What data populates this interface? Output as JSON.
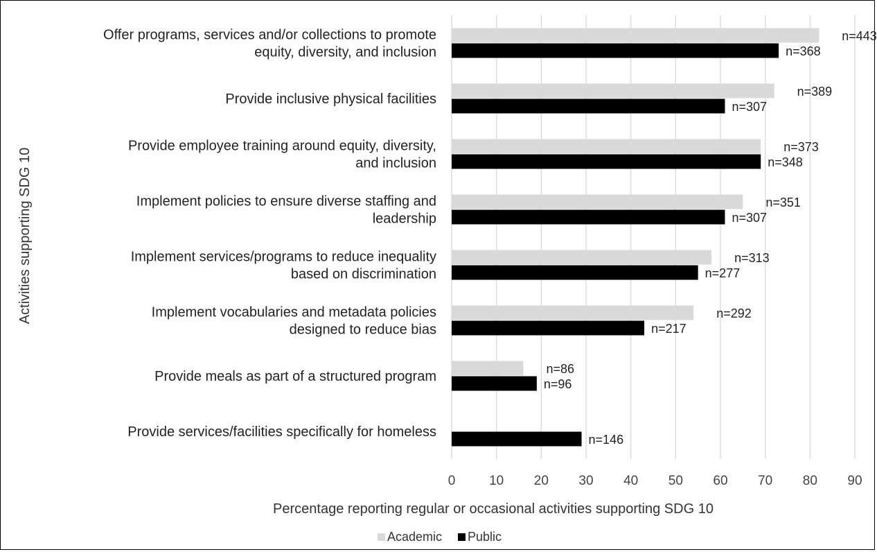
{
  "chart_data": {
    "type": "bar",
    "orientation": "horizontal",
    "categories": [
      [
        "Offer programs, services and/or collections to promote",
        "equity, diversity, and inclusion"
      ],
      [
        "Provide inclusive physical facilities"
      ],
      [
        "Provide employee training around equity, diversity,",
        "and inclusion"
      ],
      [
        "Implement policies to ensure diverse staffing and",
        "leadership"
      ],
      [
        "Implement services/programs to reduce inequality",
        "based on discrimination"
      ],
      [
        "Implement vocabularies and metadata policies",
        "designed to reduce bias"
      ],
      [
        "Provide meals as part of a structured program"
      ],
      [
        "Provide services/facilities specifically for homeless"
      ]
    ],
    "series": [
      {
        "name": "Academic",
        "color": "#d9d9d9",
        "values": [
          82,
          72,
          69,
          65,
          58,
          54,
          16,
          null
        ],
        "labels": [
          "n=443",
          "n=389",
          "n=373",
          "n=351",
          "n=313",
          "n=292",
          "n=86",
          ""
        ]
      },
      {
        "name": "Public",
        "color": "#000000",
        "values": [
          73,
          61,
          69,
          61,
          55,
          43,
          19,
          29
        ],
        "labels": [
          "n=368",
          "n=307",
          "n=348",
          "n=307",
          "n=277",
          "n=217",
          "n=96",
          "n=146"
        ]
      }
    ],
    "xlabel": "Percentage reporting regular or occasional activities supporting SDG 10",
    "ylabel": "Activities supporting SDG 10",
    "xlim": [
      0,
      90
    ],
    "xticks": [
      0,
      10,
      20,
      30,
      40,
      50,
      60,
      70,
      80,
      90
    ],
    "grid": "vertical",
    "legend": "bottom-center"
  }
}
